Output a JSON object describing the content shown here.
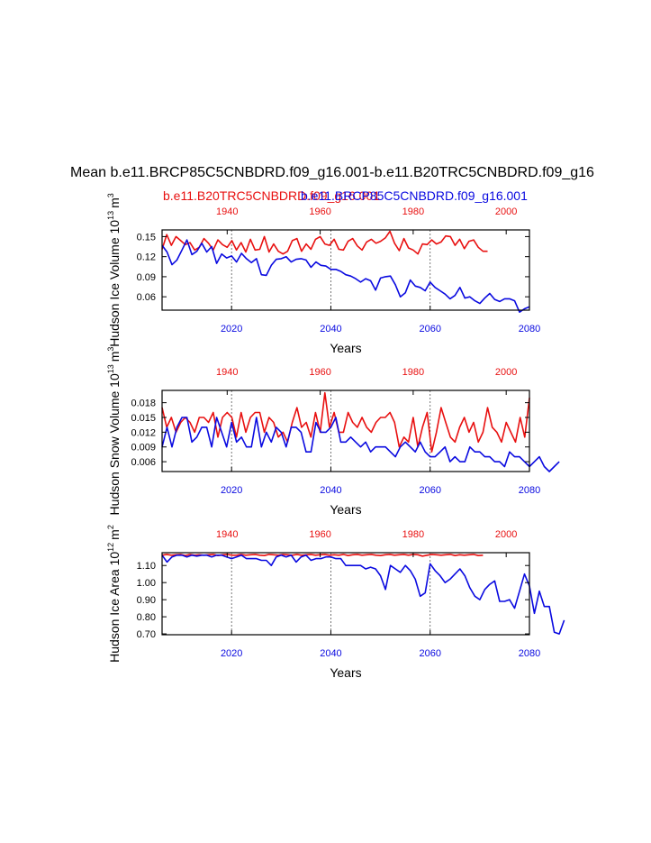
{
  "title": "Mean b.e11.BRCP85C5CNBDRD.f09_g16.001-b.e11.B20TRC5CNBDRD.f09_g16",
  "legend": {
    "red_label": "b.e11.B20TRC5CNBDRD.f09_g16.001",
    "blue_label": "b.e11.BRCP85C5CNBDRD.f09_g16.001"
  },
  "colors": {
    "red": "#e81010",
    "blue": "#0a0ae0"
  },
  "chart_data": [
    {
      "type": "line",
      "ylabel": "Hudson Ice Volume 10^13 m^3",
      "ylabel_main": "Hudson Ice Volume 10",
      "ylabel_exp": "13",
      "ylabel_unit": "m",
      "ylabel_unit_exp": "3",
      "xlabel": "Years",
      "bottom_axis": {
        "range": [
          2006,
          2080
        ],
        "ticks": [
          2020,
          2040,
          2060,
          2080
        ],
        "labels": [
          "2020",
          "2040",
          "2060",
          "2080"
        ]
      },
      "top_axis": {
        "range": [
          1926,
          2005
        ],
        "ticks": [
          1940,
          1960,
          1980,
          2000
        ],
        "labels": [
          "1940",
          "1960",
          "1980",
          "2000"
        ]
      },
      "ylim": [
        0.04,
        0.16
      ],
      "yticks": [
        0.06,
        0.09,
        0.12,
        0.15
      ],
      "ytick_labels": [
        "0.06",
        "0.09",
        "0.12",
        "0.15"
      ],
      "vlines": [
        2020,
        2040,
        2060
      ],
      "series": [
        {
          "name": "b.e11.B20TRC5CNBDRD.f09_g16.001",
          "color": "red",
          "x_start": 1926,
          "values": [
            0.131,
            0.153,
            0.137,
            0.15,
            0.144,
            0.138,
            0.141,
            0.13,
            0.134,
            0.147,
            0.14,
            0.13,
            0.145,
            0.138,
            0.134,
            0.144,
            0.13,
            0.141,
            0.127,
            0.146,
            0.13,
            0.131,
            0.15,
            0.127,
            0.139,
            0.128,
            0.124,
            0.128,
            0.144,
            0.147,
            0.128,
            0.139,
            0.131,
            0.146,
            0.15,
            0.139,
            0.137,
            0.146,
            0.131,
            0.13,
            0.143,
            0.147,
            0.136,
            0.13,
            0.142,
            0.146,
            0.14,
            0.143,
            0.148,
            0.158,
            0.14,
            0.129,
            0.147,
            0.133,
            0.13,
            0.124,
            0.139,
            0.138,
            0.145,
            0.139,
            0.142,
            0.151,
            0.15,
            0.137,
            0.146,
            0.132,
            0.143,
            0.145,
            0.134,
            0.128,
            0.128
          ]
        },
        {
          "name": "b.e11.BRCP85C5CNBDRD.f09_g16.001",
          "color": "blue",
          "x_start": 2006,
          "values": [
            0.137,
            0.127,
            0.108,
            0.115,
            0.13,
            0.145,
            0.123,
            0.128,
            0.14,
            0.127,
            0.135,
            0.11,
            0.124,
            0.118,
            0.121,
            0.112,
            0.125,
            0.117,
            0.111,
            0.117,
            0.093,
            0.092,
            0.107,
            0.116,
            0.117,
            0.12,
            0.112,
            0.116,
            0.117,
            0.115,
            0.104,
            0.112,
            0.107,
            0.106,
            0.101,
            0.101,
            0.098,
            0.093,
            0.091,
            0.087,
            0.082,
            0.087,
            0.084,
            0.07,
            0.088,
            0.09,
            0.091,
            0.078,
            0.06,
            0.066,
            0.085,
            0.076,
            0.074,
            0.069,
            0.082,
            0.074,
            0.069,
            0.064,
            0.057,
            0.062,
            0.074,
            0.058,
            0.06,
            0.054,
            0.05,
            0.058,
            0.065,
            0.056,
            0.053,
            0.057,
            0.057,
            0.054,
            0.037,
            0.042,
            0.045
          ]
        }
      ]
    },
    {
      "type": "line",
      "ylabel": "Hudson Snow Volume 10^13 m^3",
      "ylabel_main": "Hudson Snow Volume 10",
      "ylabel_exp": "13",
      "ylabel_unit": "m",
      "ylabel_unit_exp": "3",
      "xlabel": "Years",
      "bottom_axis": {
        "range": [
          2006,
          2080
        ],
        "ticks": [
          2020,
          2040,
          2060,
          2080
        ],
        "labels": [
          "2020",
          "2040",
          "2060",
          "2080"
        ]
      },
      "top_axis": {
        "range": [
          1926,
          2005
        ],
        "ticks": [
          1940,
          1960,
          1980,
          2000
        ],
        "labels": [
          "1940",
          "1960",
          "1980",
          "2000"
        ]
      },
      "ylim": [
        0.004,
        0.0205
      ],
      "yticks": [
        0.006,
        0.009,
        0.012,
        0.015,
        0.018
      ],
      "ytick_labels": [
        "0.006",
        "0.009",
        "0.012",
        "0.015",
        "0.018"
      ],
      "vlines": [
        2020,
        2040,
        2060
      ],
      "series": [
        {
          "name": "b.e11.B20TRC5CNBDRD.f09_g16.001",
          "color": "red",
          "x_start": 1926,
          "values": [
            0.017,
            0.013,
            0.015,
            0.012,
            0.014,
            0.015,
            0.014,
            0.012,
            0.015,
            0.015,
            0.014,
            0.016,
            0.011,
            0.015,
            0.016,
            0.015,
            0.011,
            0.016,
            0.012,
            0.015,
            0.016,
            0.016,
            0.012,
            0.015,
            0.014,
            0.011,
            0.012,
            0.01,
            0.014,
            0.017,
            0.013,
            0.014,
            0.011,
            0.016,
            0.012,
            0.02,
            0.013,
            0.016,
            0.012,
            0.012,
            0.016,
            0.014,
            0.013,
            0.015,
            0.013,
            0.012,
            0.014,
            0.015,
            0.015,
            0.016,
            0.014,
            0.009,
            0.011,
            0.01,
            0.015,
            0.009,
            0.013,
            0.016,
            0.008,
            0.012,
            0.017,
            0.014,
            0.011,
            0.01,
            0.013,
            0.015,
            0.012,
            0.014,
            0.01,
            0.012,
            0.017,
            0.013,
            0.012,
            0.01,
            0.014,
            0.012,
            0.01,
            0.015,
            0.011,
            0.019
          ]
        },
        {
          "name": "b.e11.BRCP85C5CNBDRD.f09_g16.001",
          "color": "blue",
          "x_start": 2006,
          "values": [
            0.009,
            0.013,
            0.009,
            0.013,
            0.015,
            0.015,
            0.01,
            0.011,
            0.013,
            0.013,
            0.009,
            0.015,
            0.012,
            0.009,
            0.014,
            0.01,
            0.011,
            0.009,
            0.009,
            0.015,
            0.009,
            0.012,
            0.01,
            0.013,
            0.012,
            0.009,
            0.013,
            0.013,
            0.012,
            0.008,
            0.008,
            0.014,
            0.012,
            0.012,
            0.013,
            0.015,
            0.01,
            0.01,
            0.011,
            0.01,
            0.009,
            0.01,
            0.008,
            0.009,
            0.009,
            0.009,
            0.008,
            0.007,
            0.009,
            0.01,
            0.009,
            0.008,
            0.01,
            0.008,
            0.007,
            0.007,
            0.008,
            0.009,
            0.006,
            0.007,
            0.006,
            0.006,
            0.009,
            0.008,
            0.008,
            0.007,
            0.007,
            0.006,
            0.006,
            0.005,
            0.008,
            0.007,
            0.007,
            0.006,
            0.005,
            0.006,
            0.007,
            0.005,
            0.004,
            0.005,
            0.006
          ]
        }
      ]
    },
    {
      "type": "line",
      "ylabel": "Hudson Ice Area 10^12 m^2",
      "ylabel_main": "Hudson Ice Area 10",
      "ylabel_exp": "12",
      "ylabel_unit": "m",
      "ylabel_unit_exp": "2",
      "xlabel": "Years",
      "bottom_axis": {
        "range": [
          2006,
          2080
        ],
        "ticks": [
          2020,
          2040,
          2060,
          2080
        ],
        "labels": [
          "2020",
          "2040",
          "2060",
          "2080"
        ]
      },
      "top_axis": {
        "range": [
          1926,
          2005
        ],
        "ticks": [
          1940,
          1960,
          1980,
          2000
        ],
        "labels": [
          "1940",
          "1960",
          "1980",
          "2000"
        ]
      },
      "ylim": [
        0.695,
        1.175
      ],
      "yticks": [
        0.7,
        0.8,
        0.9,
        1.0,
        1.1
      ],
      "ytick_labels": [
        "0.70",
        "0.80",
        "0.90",
        "1.00",
        "1.10"
      ],
      "vlines": [
        2020,
        2040,
        2060
      ],
      "series": [
        {
          "name": "b.e11.B20TRC5CNBDRD.f09_g16.001",
          "color": "red",
          "x_start": 1926,
          "values": [
            1.16,
            1.165,
            1.16,
            1.163,
            1.165,
            1.158,
            1.165,
            1.16,
            1.163,
            1.16,
            1.163,
            1.165,
            1.158,
            1.163,
            1.165,
            1.16,
            1.16,
            1.165,
            1.16,
            1.163,
            1.165,
            1.16,
            1.158,
            1.165,
            1.163,
            1.16,
            1.165,
            1.163,
            1.16,
            1.165,
            1.16,
            1.163,
            1.165,
            1.16,
            1.163,
            1.165,
            1.16,
            1.163,
            1.16,
            1.165,
            1.158,
            1.163,
            1.165,
            1.16,
            1.163,
            1.165,
            1.16,
            1.158,
            1.163,
            1.165,
            1.16,
            1.163,
            1.165,
            1.16,
            1.165,
            1.163,
            1.155,
            1.16,
            1.165,
            1.163,
            1.16,
            1.163,
            1.165,
            1.158,
            1.163,
            1.16,
            1.163,
            1.165,
            1.158,
            1.16
          ]
        },
        {
          "name": "b.e11.BRCP85C5CNBDRD.f09_g16.001",
          "color": "blue",
          "x_start": 2006,
          "values": [
            1.16,
            1.12,
            1.15,
            1.16,
            1.16,
            1.15,
            1.16,
            1.155,
            1.16,
            1.16,
            1.15,
            1.16,
            1.16,
            1.15,
            1.14,
            1.15,
            1.16,
            1.14,
            1.14,
            1.14,
            1.13,
            1.13,
            1.1,
            1.15,
            1.16,
            1.15,
            1.16,
            1.12,
            1.15,
            1.16,
            1.13,
            1.14,
            1.14,
            1.15,
            1.15,
            1.14,
            1.14,
            1.1,
            1.1,
            1.1,
            1.1,
            1.08,
            1.09,
            1.08,
            1.04,
            0.96,
            1.1,
            1.08,
            1.06,
            1.1,
            1.07,
            1.02,
            0.92,
            0.94,
            1.11,
            1.07,
            1.04,
            1.0,
            1.02,
            1.05,
            1.08,
            1.04,
            0.97,
            0.92,
            0.9,
            0.96,
            0.99,
            1.01,
            0.89,
            0.89,
            0.9,
            0.85,
            0.95,
            1.05,
            0.98,
            0.82,
            0.95,
            0.86,
            0.86,
            0.71,
            0.7,
            0.78
          ]
        }
      ]
    }
  ]
}
